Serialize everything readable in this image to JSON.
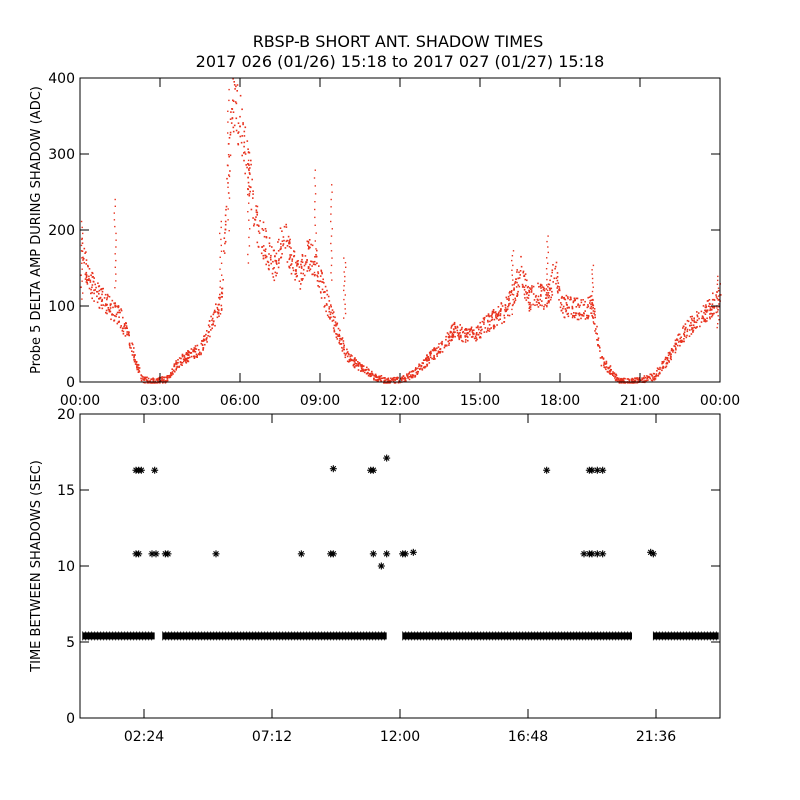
{
  "title": {
    "line1": "RBSP-B SHORT ANT. SHADOW TIMES",
    "line2": "2017 026 (01/26) 15:18 to 2017 027 (01/27) 15:18"
  },
  "colors": {
    "amp_points": "#e8321e",
    "interval_points": "#000000",
    "axes": "#000000"
  },
  "chart_data": [
    {
      "type": "scatter",
      "ylabel": "Probe 5 DELTA AMP DURING SHADOW (ADC)",
      "xlabel": "",
      "xlim_hours": [
        0,
        24
      ],
      "ylim": [
        0,
        400
      ],
      "x_ticks": [
        {
          "hour": 0,
          "label": "00:00"
        },
        {
          "hour": 3,
          "label": "03:00"
        },
        {
          "hour": 6,
          "label": "06:00"
        },
        {
          "hour": 9,
          "label": "09:00"
        },
        {
          "hour": 12,
          "label": "12:00"
        },
        {
          "hour": 15,
          "label": "15:00"
        },
        {
          "hour": 18,
          "label": "18:00"
        },
        {
          "hour": 21,
          "label": "21:00"
        },
        {
          "hour": 24,
          "label": "00:00"
        }
      ],
      "y_ticks": [
        0,
        100,
        200,
        300,
        400
      ],
      "marker": "dot",
      "trend": [
        [
          0.0,
          180
        ],
        [
          0.3,
          135
        ],
        [
          0.6,
          120
        ],
        [
          0.9,
          105
        ],
        [
          1.2,
          95
        ],
        [
          1.5,
          85
        ],
        [
          1.8,
          60
        ],
        [
          2.1,
          25
        ],
        [
          2.3,
          5
        ],
        [
          2.5,
          3
        ],
        [
          2.8,
          2
        ],
        [
          3.3,
          5
        ],
        [
          3.6,
          25
        ],
        [
          4.0,
          35
        ],
        [
          4.5,
          45
        ],
        [
          5.0,
          85
        ],
        [
          5.3,
          110
        ],
        [
          5.5,
          260
        ],
        [
          5.7,
          370
        ],
        [
          6.0,
          340
        ],
        [
          6.3,
          280
        ],
        [
          6.6,
          210
        ],
        [
          7.0,
          175
        ],
        [
          7.3,
          150
        ],
        [
          7.6,
          200
        ],
        [
          7.9,
          165
        ],
        [
          8.2,
          140
        ],
        [
          8.5,
          170
        ],
        [
          8.8,
          160
        ],
        [
          9.1,
          120
        ],
        [
          9.4,
          90
        ],
        [
          9.7,
          60
        ],
        [
          10.0,
          35
        ],
        [
          10.5,
          20
        ],
        [
          11.0,
          8
        ],
        [
          11.5,
          2
        ],
        [
          12.0,
          3
        ],
        [
          12.5,
          12
        ],
        [
          13.0,
          30
        ],
        [
          13.5,
          45
        ],
        [
          14.0,
          70
        ],
        [
          14.5,
          60
        ],
        [
          15.0,
          70
        ],
        [
          15.5,
          85
        ],
        [
          15.9,
          95
        ],
        [
          16.2,
          110
        ],
        [
          16.5,
          150
        ],
        [
          16.8,
          110
        ],
        [
          17.2,
          115
        ],
        [
          17.5,
          110
        ],
        [
          17.8,
          150
        ],
        [
          18.0,
          100
        ],
        [
          18.4,
          100
        ],
        [
          18.8,
          95
        ],
        [
          19.2,
          100
        ],
        [
          19.5,
          30
        ],
        [
          19.9,
          15
        ],
        [
          20.2,
          2
        ],
        [
          20.6,
          1
        ],
        [
          21.5,
          8
        ],
        [
          22.0,
          30
        ],
        [
          22.5,
          60
        ],
        [
          23.0,
          80
        ],
        [
          23.5,
          95
        ],
        [
          24.0,
          115
        ]
      ],
      "spikes": [
        [
          0.05,
          220
        ],
        [
          1.3,
          250
        ],
        [
          5.25,
          220
        ],
        [
          5.55,
          400
        ],
        [
          6.3,
          315
        ],
        [
          8.8,
          290
        ],
        [
          9.4,
          270
        ],
        [
          9.9,
          170
        ],
        [
          16.2,
          180
        ],
        [
          17.5,
          200
        ],
        [
          19.2,
          160
        ],
        [
          23.9,
          145
        ]
      ]
    },
    {
      "type": "scatter",
      "ylabel": "TIME BETWEEN SHADOWS (SEC)",
      "xlabel": "",
      "xlim_hours": [
        0,
        24
      ],
      "ylim": [
        0,
        20
      ],
      "x_ticks": [
        {
          "hour": 2.4,
          "label": "02:24"
        },
        {
          "hour": 7.2,
          "label": "07:12"
        },
        {
          "hour": 12.0,
          "label": "12:00"
        },
        {
          "hour": 16.8,
          "label": "16:48"
        },
        {
          "hour": 21.6,
          "label": "21:36"
        }
      ],
      "y_ticks": [
        0,
        5,
        10,
        15,
        20
      ],
      "marker": "asterisk",
      "baseline": {
        "y": 5.4,
        "segments": [
          [
            0.1,
            2.8
          ],
          [
            3.1,
            11.5
          ],
          [
            12.1,
            20.7
          ],
          [
            21.5,
            23.95
          ]
        ]
      },
      "points": [
        [
          2.1,
          16.3
        ],
        [
          2.2,
          16.3
        ],
        [
          2.3,
          16.3
        ],
        [
          2.8,
          16.3
        ],
        [
          9.5,
          16.4
        ],
        [
          10.9,
          16.3
        ],
        [
          11.0,
          16.3
        ],
        [
          11.5,
          17.1
        ],
        [
          17.5,
          16.3
        ],
        [
          19.1,
          16.3
        ],
        [
          19.2,
          16.3
        ],
        [
          19.4,
          16.3
        ],
        [
          19.6,
          16.3
        ],
        [
          2.1,
          10.8
        ],
        [
          2.2,
          10.8
        ],
        [
          2.7,
          10.8
        ],
        [
          2.85,
          10.8
        ],
        [
          3.2,
          10.8
        ],
        [
          3.3,
          10.8
        ],
        [
          5.1,
          10.8
        ],
        [
          8.3,
          10.8
        ],
        [
          9.4,
          10.8
        ],
        [
          9.5,
          10.8
        ],
        [
          11.0,
          10.8
        ],
        [
          11.5,
          10.8
        ],
        [
          12.1,
          10.8
        ],
        [
          12.2,
          10.8
        ],
        [
          12.5,
          10.9
        ],
        [
          18.9,
          10.8
        ],
        [
          19.1,
          10.8
        ],
        [
          19.2,
          10.8
        ],
        [
          19.4,
          10.8
        ],
        [
          19.6,
          10.8
        ],
        [
          21.4,
          10.9
        ],
        [
          21.5,
          10.8
        ],
        [
          11.3,
          10.0
        ]
      ]
    }
  ]
}
